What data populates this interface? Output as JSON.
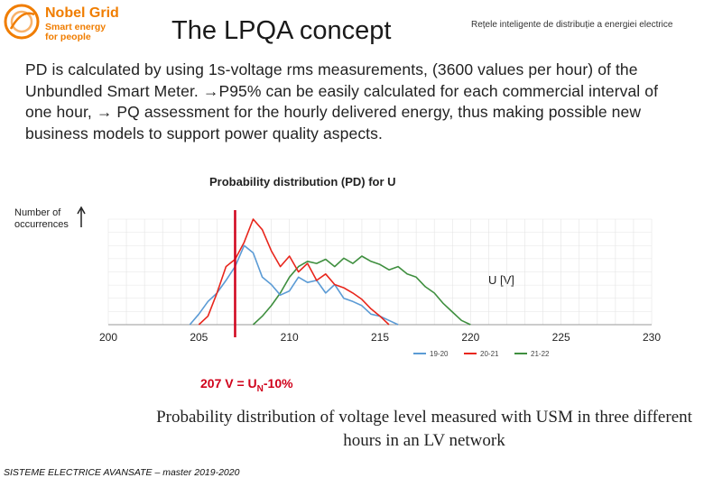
{
  "logo": {
    "name": "Nobel Grid",
    "tagline": "Smart energy for people"
  },
  "slide": {
    "title": "The LPQA concept",
    "header_note": "Rețele inteligente de distribuție a energiei electrice",
    "body": "PD is calculated by using 1s-voltage rms measurements, (3600 values per hour) of the Unbundled Smart Meter. →P95% can be easily calculated for each commercial interval of one hour, → PQ assessment for the hourly delivered energy, thus making possible new business models to support power quality aspects.",
    "caption": "Probability distribution of voltage level measured with USM in three different hours in an LV network",
    "footer": "SISTEME ELECTRICE AVANSATE – master 2019-2020"
  },
  "chart_data": {
    "type": "line",
    "title": "Probability distribution (PD) for U",
    "ylabel": "Number of occurrences",
    "xlabel": "U [V]",
    "xlim": [
      200,
      230
    ],
    "xticks": [
      200,
      205,
      210,
      215,
      220,
      225,
      230
    ],
    "grid": true,
    "legend_position": "bottom-right",
    "marker": {
      "x": 207,
      "label": "207 V = U",
      "label_sub": "N",
      "label_tail": "-10%",
      "color": "#d0021b"
    },
    "series": [
      {
        "name": "19-20",
        "color": "#5b9bd5",
        "x": [
          204.5,
          205,
          205.5,
          206,
          206.5,
          207,
          207.5,
          208,
          208.5,
          209,
          209.5,
          210,
          210.5,
          211,
          211.5,
          212,
          212.5,
          213,
          213.5,
          214,
          214.5,
          215,
          215.5,
          216
        ],
        "values": [
          0,
          10,
          22,
          30,
          42,
          55,
          75,
          68,
          45,
          38,
          28,
          32,
          45,
          40,
          42,
          30,
          38,
          25,
          22,
          18,
          10,
          8,
          4,
          0
        ]
      },
      {
        "name": "20-21",
        "color": "#e8261c",
        "x": [
          205,
          205.5,
          206,
          206.5,
          207,
          207.5,
          208,
          208.5,
          209,
          209.5,
          210,
          210.5,
          211,
          211.5,
          212,
          212.5,
          213,
          213.5,
          214,
          214.5,
          215,
          215.5
        ],
        "values": [
          0,
          8,
          30,
          55,
          62,
          78,
          100,
          90,
          70,
          55,
          65,
          50,
          58,
          42,
          48,
          38,
          35,
          30,
          24,
          15,
          8,
          0
        ]
      },
      {
        "name": "21-22",
        "color": "#3f8f3f",
        "x": [
          208,
          208.5,
          209,
          209.5,
          210,
          210.5,
          211,
          211.5,
          212,
          212.5,
          213,
          213.5,
          214,
          214.5,
          215,
          215.5,
          216,
          216.5,
          217,
          217.5,
          218,
          218.5,
          219,
          219.5,
          220
        ],
        "values": [
          0,
          8,
          18,
          30,
          45,
          55,
          60,
          58,
          62,
          55,
          63,
          58,
          65,
          60,
          57,
          52,
          55,
          48,
          45,
          36,
          30,
          20,
          12,
          4,
          0
        ]
      }
    ]
  }
}
